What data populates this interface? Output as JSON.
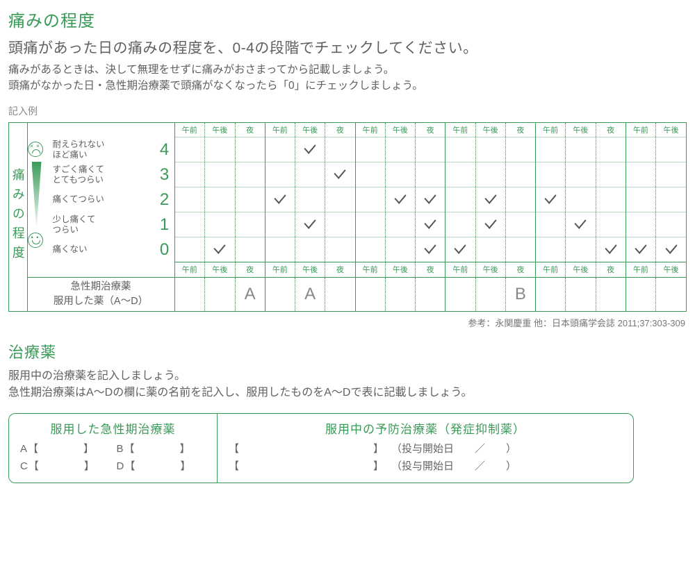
{
  "colors": {
    "accent": "#3a9a58",
    "text": "#606060",
    "muted": "#888888",
    "bg": "#ffffff"
  },
  "section1": {
    "title": "痛みの程度",
    "lead": "頭痛があった日の痛みの程度を、0-4の段階でチェックしてください。",
    "note1": "痛みがあるときは、決して無理をせずに痛みがおさまってから記載しましょう。",
    "note2": "頭痛がなかった日・急性期治療薬で頭痛がなくなったら「0」にチェックしましょう。",
    "example_label": "記入例",
    "side_label": "痛みの程度",
    "scale": [
      {
        "num": "4",
        "text": "耐えられない\nほど痛い",
        "icon": "sad"
      },
      {
        "num": "3",
        "text": "すごく痛くて\nとてもつらい"
      },
      {
        "num": "2",
        "text": "痛くてつらい"
      },
      {
        "num": "1",
        "text": "少し痛くて\nつらい"
      },
      {
        "num": "0",
        "text": "痛くない",
        "icon": "happy"
      }
    ],
    "time_headers": [
      "午前",
      "午後",
      "夜"
    ],
    "days": 5,
    "partial_day_slots": 2,
    "checks": {
      "4": [
        4
      ],
      "3": [
        5
      ],
      "2": [
        3,
        7,
        8,
        10,
        12
      ],
      "1": [
        4,
        8,
        10,
        13
      ],
      "0": [
        1,
        8,
        9,
        14,
        15,
        16
      ]
    },
    "medication_row_label1": "急性期治療薬",
    "medication_row_label2": "服用した薬（A〜D）",
    "medication_marks": {
      "2": "A",
      "4": "A",
      "11": "B"
    },
    "citation": "参考：永関慶重 他：日本頭痛学会誌 2011;37:303-309"
  },
  "section2": {
    "title": "治療薬",
    "para1": "服用中の治療薬を記入しましょう。",
    "para2": "急性期治療薬はA〜Dの欄に薬の名前を記入し、服用したものをA〜Dで表に記載しましょう。",
    "left_title": "服用した急性期治療薬",
    "right_title": "服用中の予防治療薬（発症抑制薬）",
    "acute_labels": [
      "A",
      "B",
      "C",
      "D"
    ],
    "prevent_date_label": "（投与開始日　　／　　）"
  }
}
